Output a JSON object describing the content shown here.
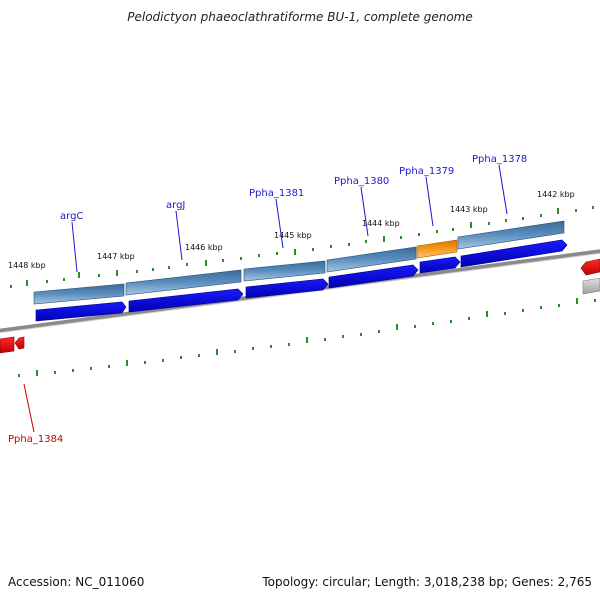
{
  "title": "Pelodictyon phaeoclathratiforme BU-1, complete genome",
  "footer": {
    "accession": "Accession: NC_011060",
    "summary": "Topology: circular; Length: 3,018,238 bp; Genes: 2,765"
  },
  "colors": {
    "forward_gene": "#0000ee",
    "reverse_gene": "#ee0000",
    "cds_track": "#4a7fb0",
    "highlight": "#f08c00",
    "tick": "#2e8b2e",
    "backbone": "#777777"
  },
  "ticks": [
    "1448 kbp",
    "1447 kbp",
    "1446 kbp",
    "1445 kbp",
    "1444 kbp",
    "1443 kbp",
    "1442 kbp"
  ],
  "gene_labels": [
    {
      "name": "argC",
      "strand": "forward"
    },
    {
      "name": "argJ",
      "strand": "forward"
    },
    {
      "name": "Ppha_1381",
      "strand": "forward"
    },
    {
      "name": "Ppha_1380",
      "strand": "forward"
    },
    {
      "name": "Ppha_1379",
      "strand": "forward"
    },
    {
      "name": "Ppha_1378",
      "strand": "forward"
    },
    {
      "name": "Ppha_1384",
      "strand": "reverse"
    }
  ]
}
